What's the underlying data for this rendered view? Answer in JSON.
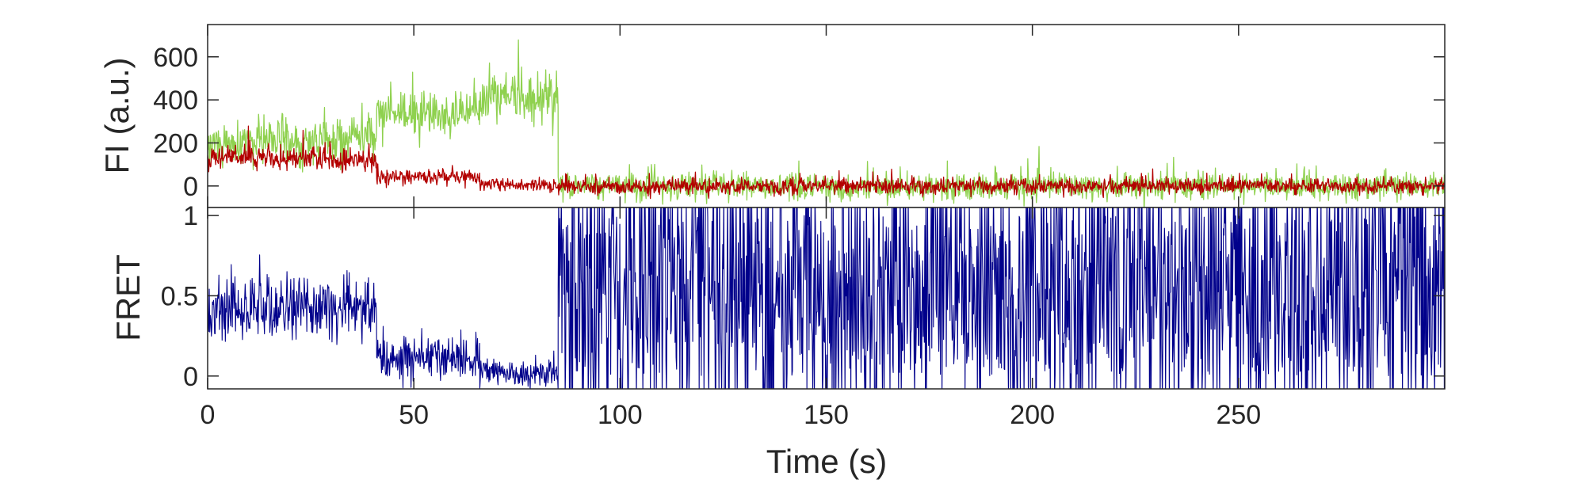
{
  "chart_data": [
    {
      "id": "top",
      "type": "line",
      "ylabel": "FI (a.u.)",
      "xlabel": "",
      "xlim": [
        0,
        300
      ],
      "ylim": [
        -100,
        750
      ],
      "yticks": [
        0,
        200,
        400,
        600
      ],
      "xticks": [
        0,
        50,
        100,
        150,
        200,
        250
      ],
      "grid": false,
      "legend": "none",
      "series": [
        {
          "color": "#8fd14f",
          "role": "donor",
          "segments": [
            {
              "x": [
                0,
                41
              ],
              "mean": 190,
              "mean_end": 240,
              "noise": 70
            },
            {
              "x": [
                41,
                66
              ],
              "mean": 330,
              "mean_end": 340,
              "noise": 65
            },
            {
              "x": [
                66,
                85
              ],
              "mean": 410,
              "mean_end": 420,
              "noise": 80
            },
            {
              "x": [
                85,
                300
              ],
              "mean": 0,
              "mean_end": 0,
              "noise": 42
            }
          ]
        },
        {
          "color": "#b30000",
          "role": "acceptor",
          "segments": [
            {
              "x": [
                0,
                41
              ],
              "mean": 140,
              "mean_end": 120,
              "noise": 35
            },
            {
              "x": [
                41,
                66
              ],
              "mean": 40,
              "mean_end": 45,
              "noise": 25
            },
            {
              "x": [
                66,
                85
              ],
              "mean": 10,
              "mean_end": 0,
              "noise": 22
            },
            {
              "x": [
                85,
                300
              ],
              "mean": 0,
              "mean_end": 0,
              "noise": 25
            }
          ]
        }
      ]
    },
    {
      "id": "bottom",
      "type": "line",
      "ylabel": "FRET",
      "xlabel": "Time (s)",
      "xlim": [
        0,
        300
      ],
      "ylim": [
        -0.08,
        1.05
      ],
      "yticks": [
        0,
        0.5,
        1
      ],
      "ytick_labels": [
        "0",
        "0.5",
        "1"
      ],
      "xticks": [
        0,
        50,
        100,
        150,
        200,
        250
      ],
      "xtick_labels": [
        "0",
        "50",
        "100",
        "150",
        "200",
        "250"
      ],
      "grid": false,
      "legend": "none",
      "series": [
        {
          "color": "#00008b",
          "segments": [
            {
              "x": [
                0,
                41
              ],
              "mean": 0.42,
              "mean_end": 0.42,
              "noise": 0.13
            },
            {
              "x": [
                41,
                66
              ],
              "mean": 0.12,
              "mean_end": 0.12,
              "noise": 0.1
            },
            {
              "x": [
                66,
                85
              ],
              "mean": 0.02,
              "mean_end": 0.02,
              "noise": 0.06
            },
            {
              "x": [
                85,
                300
              ],
              "mean": 0.5,
              "mean_end": 0.5,
              "noise": 0.5,
              "mode": "random"
            }
          ]
        }
      ]
    }
  ]
}
